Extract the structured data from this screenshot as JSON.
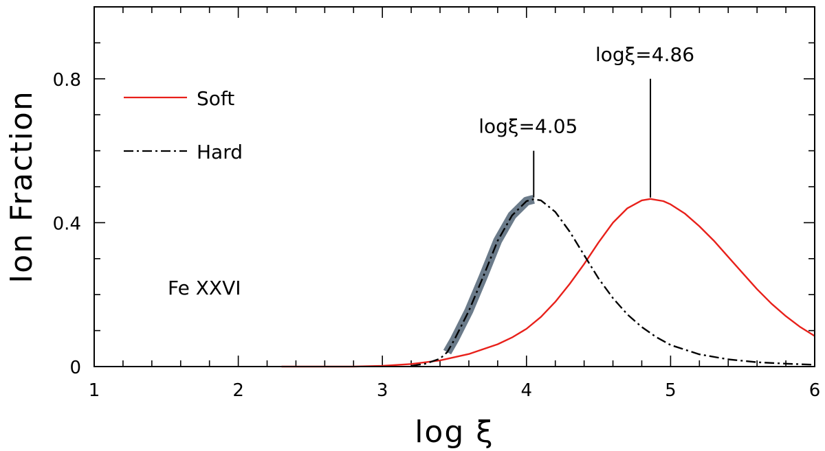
{
  "chart_data": {
    "type": "line",
    "xlabel": "log ξ",
    "ylabel": "Ion Fraction",
    "xlim": [
      1,
      6
    ],
    "ylim": [
      0,
      1
    ],
    "x_ticks": [
      "1",
      "2",
      "3",
      "4",
      "5",
      "6"
    ],
    "y_ticks": [
      {
        "value": 0,
        "label": "0"
      },
      {
        "value": 0.4,
        "label": "0.4"
      },
      {
        "value": 0.8,
        "label": "0.8"
      }
    ],
    "ion_label": "Fe XXVI",
    "legend_position": "top-left",
    "series": [
      {
        "name": "Soft",
        "style": "solid",
        "color": "#e8201a",
        "x": [
          2.3,
          2.6,
          2.8,
          3.0,
          3.2,
          3.4,
          3.6,
          3.8,
          3.9,
          4.0,
          4.1,
          4.2,
          4.3,
          4.4,
          4.5,
          4.6,
          4.7,
          4.8,
          4.86,
          4.95,
          5.0,
          5.1,
          5.2,
          5.3,
          5.4,
          5.5,
          5.6,
          5.7,
          5.8,
          5.9,
          6.0
        ],
        "y": [
          0.0,
          0.0,
          0.0,
          0.002,
          0.007,
          0.017,
          0.035,
          0.062,
          0.081,
          0.105,
          0.138,
          0.18,
          0.23,
          0.285,
          0.345,
          0.4,
          0.44,
          0.462,
          0.466,
          0.46,
          0.451,
          0.425,
          0.39,
          0.35,
          0.305,
          0.26,
          0.215,
          0.175,
          0.14,
          0.11,
          0.085
        ]
      },
      {
        "name": "Hard",
        "style": "dash-dot",
        "color": "#000000",
        "x": [
          3.2,
          3.3,
          3.4,
          3.45,
          3.5,
          3.6,
          3.7,
          3.8,
          3.9,
          4.0,
          4.05,
          4.1,
          4.2,
          4.3,
          4.4,
          4.5,
          4.6,
          4.7,
          4.8,
          4.9,
          5.0,
          5.2,
          5.4,
          5.6,
          5.8,
          6.0
        ],
        "y": [
          0.002,
          0.008,
          0.022,
          0.04,
          0.075,
          0.155,
          0.25,
          0.35,
          0.42,
          0.46,
          0.465,
          0.462,
          0.43,
          0.375,
          0.31,
          0.245,
          0.19,
          0.145,
          0.11,
          0.082,
          0.06,
          0.034,
          0.02,
          0.012,
          0.008,
          0.005
        ]
      }
    ],
    "highlight": {
      "color": "#6b7b8a",
      "x": [
        3.45,
        3.5,
        3.6,
        3.7,
        3.8,
        3.9,
        4.0,
        4.05
      ],
      "y": [
        0.04,
        0.075,
        0.155,
        0.25,
        0.35,
        0.42,
        0.46,
        0.465
      ]
    },
    "annotations": [
      {
        "text": "logξ=4.05",
        "x": 4.05,
        "line_from": 0.47,
        "line_to": 0.6
      },
      {
        "text": "logξ=4.86",
        "x": 4.86,
        "line_from": 0.47,
        "line_to": 0.8
      }
    ]
  }
}
